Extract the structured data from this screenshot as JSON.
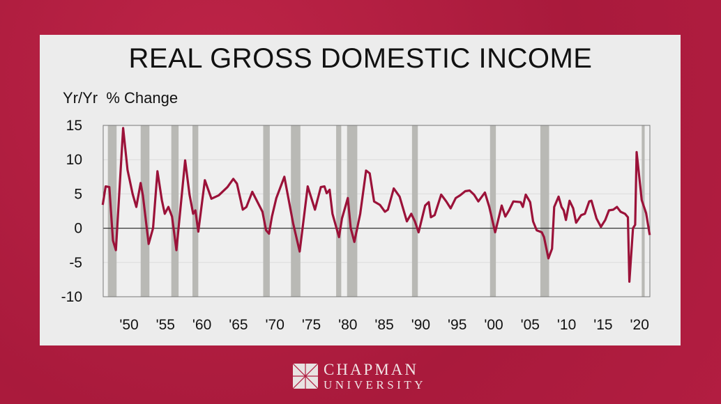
{
  "chart_data": {
    "type": "line",
    "title": "REAL GROSS DOMESTIC INCOME",
    "ylabel": "Yr/Yr  % Change",
    "xlabel": "",
    "ylim": [
      -10,
      15
    ],
    "yticks": [
      15,
      10,
      5,
      0,
      -5,
      -10
    ],
    "xlim": [
      1946.3,
      2021.5
    ],
    "xticks": [
      {
        "year": 1950,
        "label": "'50"
      },
      {
        "year": 1955,
        "label": "'55"
      },
      {
        "year": 1960,
        "label": "'60"
      },
      {
        "year": 1965,
        "label": "'65"
      },
      {
        "year": 1970,
        "label": "'70"
      },
      {
        "year": 1975,
        "label": "'75"
      },
      {
        "year": 1980,
        "label": "'80"
      },
      {
        "year": 1985,
        "label": "'85"
      },
      {
        "year": 1990,
        "label": "'90"
      },
      {
        "year": 1995,
        "label": "'95"
      },
      {
        "year": 2000,
        "label": "'00"
      },
      {
        "year": 2005,
        "label": "'05"
      },
      {
        "year": 2010,
        "label": "'10"
      },
      {
        "year": 2015,
        "label": "'15"
      },
      {
        "year": 2020,
        "label": "'20"
      }
    ],
    "grid": true,
    "line_color": "#9b1239",
    "recession_color": "#b9b9b5",
    "recessions": [
      [
        1947.1,
        1948.3
      ],
      [
        1951.6,
        1952.8
      ],
      [
        1955.8,
        1956.8
      ],
      [
        1958.7,
        1959.5
      ],
      [
        1968.4,
        1969.3
      ],
      [
        1972.2,
        1973.5
      ],
      [
        1978.4,
        1979.1
      ],
      [
        1979.9,
        1981.3
      ],
      [
        1988.8,
        1989.6
      ],
      [
        1999.5,
        2000.3
      ],
      [
        2006.4,
        2007.6
      ],
      [
        2020.3,
        2020.7
      ]
    ],
    "series": [
      {
        "points": [
          [
            1946.4,
            3.4
          ],
          [
            1946.8,
            6.1
          ],
          [
            1947.3,
            6.0
          ],
          [
            1947.8,
            -1.8
          ],
          [
            1948.2,
            -3.2
          ],
          [
            1949.2,
            14.6
          ],
          [
            1949.8,
            8.5
          ],
          [
            1950.5,
            5.0
          ],
          [
            1951.0,
            3.1
          ],
          [
            1951.6,
            6.6
          ],
          [
            1951.9,
            4.8
          ],
          [
            1952.7,
            -2.3
          ],
          [
            1953.3,
            0.0
          ],
          [
            1953.9,
            8.3
          ],
          [
            1954.5,
            4.1
          ],
          [
            1954.9,
            2.1
          ],
          [
            1955.4,
            3.1
          ],
          [
            1955.9,
            1.7
          ],
          [
            1956.5,
            -3.2
          ],
          [
            1957.7,
            9.9
          ],
          [
            1958.3,
            4.9
          ],
          [
            1958.8,
            2.1
          ],
          [
            1959.1,
            2.6
          ],
          [
            1959.5,
            -0.5
          ],
          [
            1960.4,
            7.0
          ],
          [
            1961.3,
            4.3
          ],
          [
            1962.3,
            4.8
          ],
          [
            1963.5,
            6.0
          ],
          [
            1964.3,
            7.2
          ],
          [
            1964.8,
            6.5
          ],
          [
            1965.6,
            2.7
          ],
          [
            1966.1,
            3.1
          ],
          [
            1966.9,
            5.3
          ],
          [
            1968.3,
            2.4
          ],
          [
            1968.8,
            -0.3
          ],
          [
            1969.2,
            -0.8
          ],
          [
            1969.6,
            1.7
          ],
          [
            1970.2,
            4.4
          ],
          [
            1971.3,
            7.5
          ],
          [
            1972.5,
            0.7
          ],
          [
            1973.4,
            -3.4
          ],
          [
            1974.5,
            6.1
          ],
          [
            1975.5,
            2.7
          ],
          [
            1976.3,
            6.0
          ],
          [
            1976.8,
            6.1
          ],
          [
            1977.1,
            5.1
          ],
          [
            1977.5,
            5.6
          ],
          [
            1977.9,
            2.1
          ],
          [
            1978.8,
            -1.3
          ],
          [
            1979.2,
            1.4
          ],
          [
            1980.0,
            4.4
          ],
          [
            1980.4,
            0.0
          ],
          [
            1980.9,
            -2.0
          ],
          [
            1981.7,
            2.1
          ],
          [
            1982.5,
            8.4
          ],
          [
            1983.0,
            8.0
          ],
          [
            1983.6,
            3.9
          ],
          [
            1984.4,
            3.4
          ],
          [
            1985.1,
            2.4
          ],
          [
            1985.5,
            2.7
          ],
          [
            1986.3,
            5.8
          ],
          [
            1987.1,
            4.6
          ],
          [
            1988.1,
            1.0
          ],
          [
            1988.7,
            2.1
          ],
          [
            1989.2,
            1.0
          ],
          [
            1989.7,
            -0.6
          ],
          [
            1990.6,
            3.3
          ],
          [
            1991.1,
            3.8
          ],
          [
            1991.4,
            1.6
          ],
          [
            1991.9,
            1.9
          ],
          [
            1992.8,
            4.9
          ],
          [
            1993.5,
            3.9
          ],
          [
            1994.1,
            2.9
          ],
          [
            1994.8,
            4.4
          ],
          [
            1995.4,
            4.8
          ],
          [
            1996.1,
            5.4
          ],
          [
            1996.7,
            5.5
          ],
          [
            1997.3,
            4.9
          ],
          [
            1997.9,
            3.9
          ],
          [
            1998.8,
            5.2
          ],
          [
            1999.4,
            3.1
          ],
          [
            2000.2,
            -0.6
          ],
          [
            2001.1,
            3.3
          ],
          [
            2001.6,
            1.7
          ],
          [
            2002.1,
            2.6
          ],
          [
            2002.7,
            3.9
          ],
          [
            2003.7,
            3.8
          ],
          [
            2004.0,
            3.1
          ],
          [
            2004.4,
            4.9
          ],
          [
            2005.0,
            3.8
          ],
          [
            2005.4,
            1.0
          ],
          [
            2005.9,
            -0.3
          ],
          [
            2006.6,
            -0.6
          ],
          [
            2006.9,
            -1.3
          ],
          [
            2007.5,
            -4.4
          ],
          [
            2008.0,
            -3.0
          ],
          [
            2008.3,
            3.1
          ],
          [
            2008.9,
            4.6
          ],
          [
            2009.3,
            3.1
          ],
          [
            2009.6,
            2.6
          ],
          [
            2009.9,
            1.2
          ],
          [
            2010.4,
            4.0
          ],
          [
            2010.9,
            2.9
          ],
          [
            2011.3,
            0.8
          ],
          [
            2012.0,
            1.9
          ],
          [
            2012.5,
            2.1
          ],
          [
            2013.1,
            3.9
          ],
          [
            2013.4,
            4.0
          ],
          [
            2014.1,
            1.4
          ],
          [
            2014.7,
            0.2
          ],
          [
            2015.3,
            1.2
          ],
          [
            2015.8,
            2.6
          ],
          [
            2016.4,
            2.7
          ],
          [
            2016.9,
            3.1
          ],
          [
            2017.4,
            2.4
          ],
          [
            2018.0,
            2.1
          ],
          [
            2018.4,
            1.6
          ],
          [
            2018.6,
            -7.8
          ],
          [
            2019.1,
            0.0
          ],
          [
            2019.4,
            0.5
          ],
          [
            2019.6,
            11.1
          ],
          [
            2020.3,
            4.1
          ],
          [
            2020.9,
            2.2
          ],
          [
            2021.4,
            -1.0
          ]
        ]
      }
    ]
  },
  "footer": {
    "logo_line1": "CHAPMAN",
    "logo_line2": "UNIVERSITY"
  }
}
